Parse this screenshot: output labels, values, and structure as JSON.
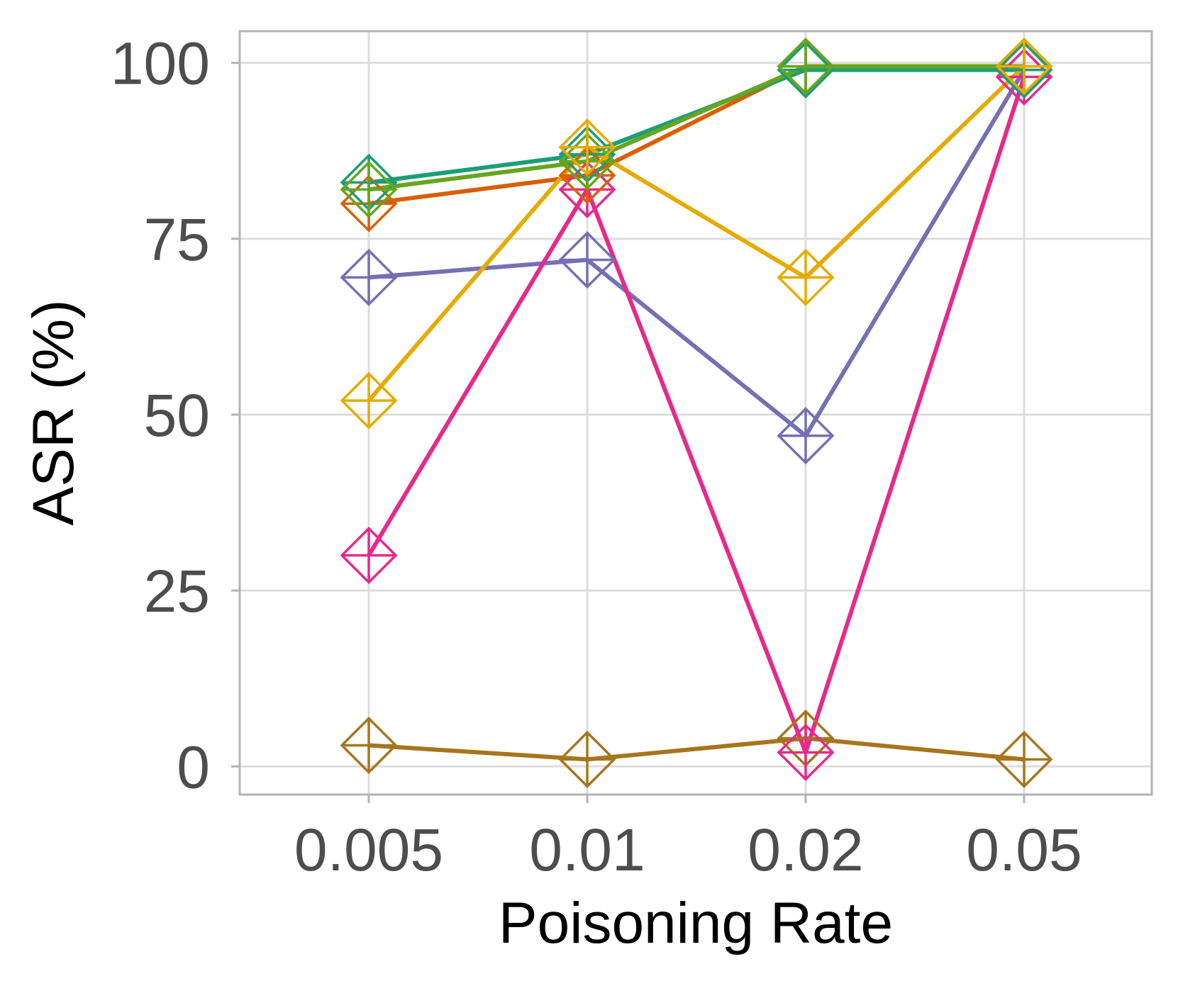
{
  "chart_data": {
    "type": "line",
    "title": "",
    "xlabel": "Poisoning Rate",
    "ylabel": "ASR (%)",
    "categories": [
      "0.005",
      "0.01",
      "0.02",
      "0.05"
    ],
    "yticks": [
      0,
      25,
      50,
      75,
      100
    ],
    "ylim": [
      -4,
      104.5
    ],
    "grid": true,
    "legend": "none",
    "marker": "diamond-plus",
    "series": [
      {
        "name": "series-1",
        "color": "#a6761d",
        "values": [
          3,
          1,
          4,
          1
        ]
      },
      {
        "name": "series-2",
        "color": "#7570b3",
        "values": [
          69.5,
          72,
          47,
          99
        ]
      },
      {
        "name": "series-3",
        "color": "#e7298a",
        "values": [
          30,
          82,
          2,
          98
        ]
      },
      {
        "name": "series-4",
        "color": "#d95f02",
        "values": [
          80,
          84,
          99.5,
          99.5
        ]
      },
      {
        "name": "series-5",
        "color": "#1b9e77",
        "values": [
          83,
          87,
          99,
          99
        ]
      },
      {
        "name": "series-6",
        "color": "#66a61e",
        "values": [
          82,
          86,
          99.5,
          99.5
        ]
      },
      {
        "name": "series-7",
        "color": "#e6ab02",
        "values": [
          52,
          88,
          69.5,
          99.5
        ]
      }
    ]
  }
}
